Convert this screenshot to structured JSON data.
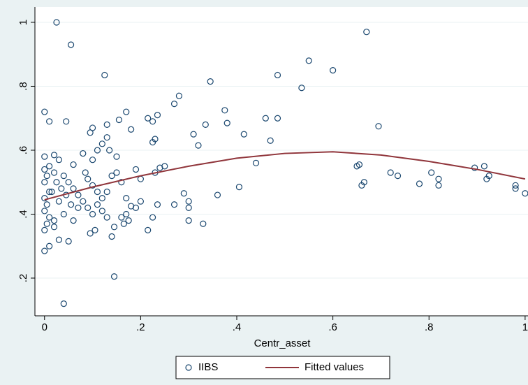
{
  "chart_data": {
    "type": "scatter",
    "x_label": "Centr_asset",
    "xlim": [
      -0.02,
      1.006
    ],
    "ylim": [
      0.082,
      1.048
    ],
    "xticks": [
      0,
      {
        "value": 0.2,
        "label": ".2"
      },
      {
        "value": 0.4,
        "label": ".4"
      },
      {
        "value": 0.6,
        "label": ".6"
      },
      {
        "value": 0.8,
        "label": ".8"
      },
      1
    ],
    "yticks": [
      {
        "value": 0.2,
        "label": ".2"
      },
      {
        "value": 0.4,
        "label": ".4"
      },
      {
        "value": 0.6,
        "label": ".6"
      },
      {
        "value": 0.8,
        "label": ".8"
      },
      1
    ],
    "grid": true,
    "legend": "bottom",
    "series": [
      {
        "name": "IIBS",
        "type": "scatter",
        "color": "#1a476f",
        "x": [
          0.025,
          0.055,
          0.67,
          0.125,
          0.55,
          0.6,
          0.485,
          0.535,
          0.345,
          0.28,
          0.27,
          0.235,
          0.215,
          0.375,
          0.0,
          0.01,
          0.045,
          0.17,
          0.155,
          0.13,
          0.18,
          0.225,
          0.46,
          0.485,
          0.38,
          0.335,
          0.31,
          0.415,
          0.47,
          0.695,
          0.23,
          0.225,
          0.13,
          0.095,
          0.1,
          0.12,
          0.135,
          0.11,
          0.32,
          0.15,
          0.0,
          0.02,
          0.03,
          0.06,
          0.08,
          0.1,
          0.44,
          0.655,
          0.65,
          0.72,
          0.735,
          0.665,
          0.66,
          0.78,
          0.805,
          0.82,
          0.82,
          0.895,
          0.915,
          0.92,
          0.925,
          0.98,
          0.98,
          1.0,
          0.36,
          0.405,
          0.3,
          0.29,
          0.3,
          0.3,
          0.33,
          0.215,
          0.235,
          0.27,
          0.225,
          0.18,
          0.165,
          0.175,
          0.14,
          0.145,
          0.04,
          0.0,
          0.01,
          0.03,
          0.05,
          0.095,
          0.105,
          0.0,
          0.005,
          0.01,
          0.02,
          0.0,
          0.005,
          0.0,
          0.01,
          0.0,
          0.005,
          0.0,
          0.01,
          0.02,
          0.04,
          0.05,
          0.06,
          0.07,
          0.08,
          0.09,
          0.1,
          0.11,
          0.12,
          0.13,
          0.14,
          0.15,
          0.16,
          0.17,
          0.19,
          0.2,
          0.24,
          0.25,
          0.23,
          0.03,
          0.04,
          0.06,
          0.07,
          0.02,
          0.015,
          0.025,
          0.035,
          0.045,
          0.055,
          0.12,
          0.13,
          0.16,
          0.19,
          0.2,
          0.085,
          0.09,
          0.1,
          0.11,
          0.145,
          0.17
        ],
        "values": [
          1.0,
          0.93,
          0.97,
          0.835,
          0.88,
          0.85,
          0.835,
          0.795,
          0.815,
          0.77,
          0.745,
          0.71,
          0.7,
          0.725,
          0.72,
          0.69,
          0.69,
          0.72,
          0.695,
          0.68,
          0.665,
          0.69,
          0.7,
          0.7,
          0.685,
          0.68,
          0.65,
          0.65,
          0.63,
          0.675,
          0.635,
          0.625,
          0.64,
          0.655,
          0.67,
          0.62,
          0.6,
          0.6,
          0.615,
          0.58,
          0.58,
          0.585,
          0.57,
          0.555,
          0.59,
          0.57,
          0.56,
          0.555,
          0.55,
          0.53,
          0.52,
          0.5,
          0.49,
          0.495,
          0.53,
          0.51,
          0.49,
          0.545,
          0.55,
          0.51,
          0.52,
          0.49,
          0.48,
          0.465,
          0.46,
          0.485,
          0.44,
          0.465,
          0.42,
          0.38,
          0.37,
          0.35,
          0.43,
          0.43,
          0.39,
          0.425,
          0.37,
          0.38,
          0.33,
          0.205,
          0.12,
          0.285,
          0.3,
          0.32,
          0.315,
          0.34,
          0.35,
          0.35,
          0.37,
          0.39,
          0.38,
          0.41,
          0.43,
          0.45,
          0.47,
          0.5,
          0.52,
          0.54,
          0.55,
          0.53,
          0.52,
          0.5,
          0.48,
          0.46,
          0.44,
          0.42,
          0.4,
          0.43,
          0.45,
          0.47,
          0.52,
          0.53,
          0.5,
          0.45,
          0.54,
          0.51,
          0.545,
          0.55,
          0.53,
          0.44,
          0.4,
          0.38,
          0.42,
          0.36,
          0.47,
          0.5,
          0.48,
          0.46,
          0.43,
          0.41,
          0.39,
          0.39,
          0.42,
          0.44,
          0.53,
          0.51,
          0.49,
          0.47,
          0.36,
          0.4
        ]
      },
      {
        "name": "Fitted values",
        "type": "line",
        "color": "#90353b",
        "x": [
          0,
          0.1,
          0.2,
          0.3,
          0.4,
          0.5,
          0.6,
          0.7,
          0.8,
          0.9,
          1
        ],
        "values": [
          0.445,
          0.485,
          0.52,
          0.55,
          0.575,
          0.59,
          0.595,
          0.585,
          0.565,
          0.54,
          0.51
        ]
      }
    ]
  }
}
